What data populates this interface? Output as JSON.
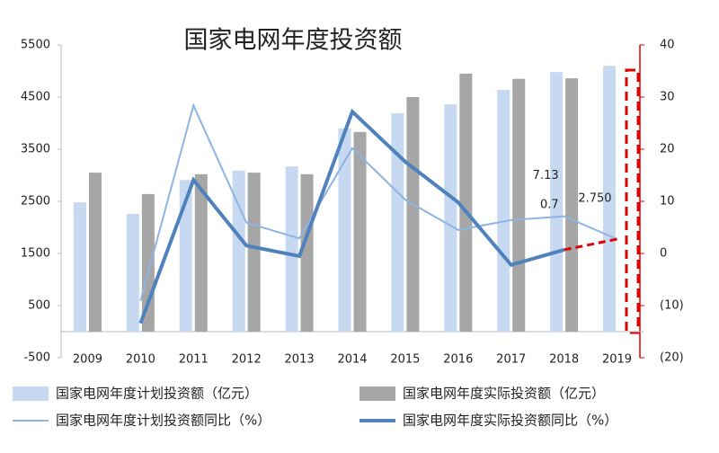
{
  "chart_data": {
    "type": "bar",
    "title": "国家电网年度投资额",
    "categories": [
      "2009",
      "2010",
      "2011",
      "2012",
      "2013",
      "2014",
      "2015",
      "2016",
      "2017",
      "2018",
      "2019"
    ],
    "series": [
      {
        "name": "国家电网年度计划投资额（亿元）",
        "type": "bar",
        "axis": "y",
        "color": "#c6d9f1",
        "values": [
          2480,
          2260,
          2910,
          3090,
          3170,
          3900,
          4190,
          4360,
          4640,
          4980,
          5100
        ]
      },
      {
        "name": "国家电网年度实际投资额（亿元）",
        "type": "bar",
        "axis": "y",
        "color": "#a6a6a6",
        "values": [
          3050,
          2640,
          3020,
          3050,
          3020,
          3830,
          4500,
          4950,
          4850,
          4860,
          null
        ]
      },
      {
        "name": "国家电网年度计划投资额同比（%）",
        "type": "line",
        "axis": "y2",
        "color": "#8db4e2",
        "width": 2,
        "values": [
          null,
          -9.1,
          28.4,
          5.9,
          2.9,
          20.2,
          10.3,
          4.5,
          6.4,
          7.13,
          2.75
        ],
        "value_labels": [
          null,
          null,
          null,
          null,
          null,
          null,
          null,
          null,
          null,
          "7.13",
          "2.750"
        ]
      },
      {
        "name": "国家电网年度实际投资额同比（%）",
        "type": "line",
        "axis": "y2",
        "color": "#4f81bd",
        "width": 4,
        "values": [
          null,
          -13.4,
          14.1,
          1.5,
          -0.5,
          27.2,
          17.6,
          9.8,
          -2.2,
          0.7,
          null
        ],
        "value_labels": [
          null,
          null,
          null,
          null,
          null,
          null,
          null,
          null,
          null,
          "0.7",
          null
        ]
      }
    ],
    "ylim": [
      -500,
      5500
    ],
    "yticks": [
      -500,
      500,
      1500,
      2500,
      3500,
      4500,
      5500
    ],
    "y2lim": [
      -20,
      40
    ],
    "y2ticks": [
      {
        "value": -20,
        "label": "(20)"
      },
      {
        "value": -10,
        "label": "(10)"
      },
      0,
      10,
      20,
      30,
      40
    ],
    "grid": false,
    "projection_color": "#e00000"
  }
}
